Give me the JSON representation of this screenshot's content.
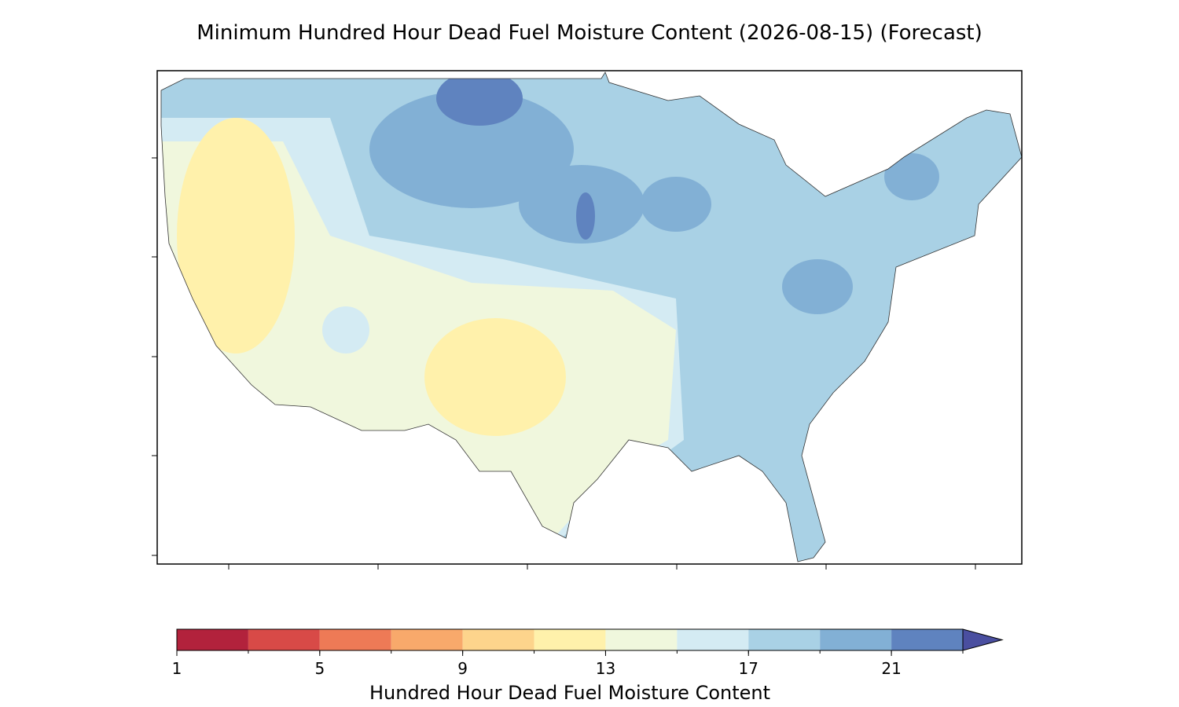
{
  "title": "Minimum Hundred Hour Dead Fuel Moisture Content (2026-08-15) (Forecast)",
  "colorbar": {
    "label": "Hundred Hour Dead Fuel Moisture Content",
    "levels": [
      1,
      3,
      5,
      7,
      9,
      11,
      13,
      15,
      17,
      19,
      21,
      23
    ],
    "colors": [
      "#b2223c",
      "#d84a47",
      "#ee7a56",
      "#f8a96b",
      "#fdd48c",
      "#fff1ab",
      "#f0f7dd",
      "#d4ebf3",
      "#a9d1e5",
      "#82b0d5",
      "#5f83bf"
    ],
    "extend_color": "#4a4fa0",
    "ticks": [
      1,
      5,
      9,
      13,
      17,
      21
    ]
  }
}
